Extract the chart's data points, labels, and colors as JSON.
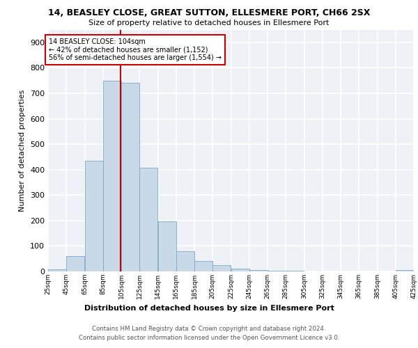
{
  "title1": "14, BEASLEY CLOSE, GREAT SUTTON, ELLESMERE PORT, CH66 2SX",
  "title2": "Size of property relative to detached houses in Ellesmere Port",
  "xlabel": "Distribution of detached houses by size in Ellesmere Port",
  "ylabel": "Number of detached properties",
  "footnote1": "Contains HM Land Registry data © Crown copyright and database right 2024.",
  "footnote2": "Contains public sector information licensed under the Open Government Licence v3.0.",
  "bin_edges": [
    25,
    45,
    65,
    85,
    105,
    125,
    145,
    165,
    185,
    205,
    225,
    245,
    265,
    285,
    305,
    325,
    345,
    365,
    385,
    405,
    425
  ],
  "bar_heights": [
    8,
    60,
    435,
    750,
    740,
    408,
    198,
    80,
    42,
    25,
    10,
    5,
    3,
    2,
    0,
    0,
    0,
    0,
    0,
    5
  ],
  "bar_color": "#c9d9e8",
  "bar_edge_color": "#7aa8cc",
  "property_size": 104,
  "vline_color": "#cc0000",
  "annotation_text": "14 BEASLEY CLOSE: 104sqm\n← 42% of detached houses are smaller (1,152)\n56% of semi-detached houses are larger (1,554) →",
  "annotation_box_edge": "#cc0000",
  "ylim": [
    0,
    950
  ],
  "yticks": [
    0,
    100,
    200,
    300,
    400,
    500,
    600,
    700,
    800,
    900
  ],
  "background_color": "#eef2f7",
  "grid_color": "#ffffff",
  "tick_labels": [
    "25sqm",
    "45sqm",
    "65sqm",
    "85sqm",
    "105sqm",
    "125sqm",
    "145sqm",
    "165sqm",
    "185sqm",
    "205sqm",
    "225sqm",
    "245sqm",
    "265sqm",
    "285sqm",
    "305sqm",
    "325sqm",
    "345sqm",
    "365sqm",
    "385sqm",
    "405sqm",
    "425sqm"
  ]
}
